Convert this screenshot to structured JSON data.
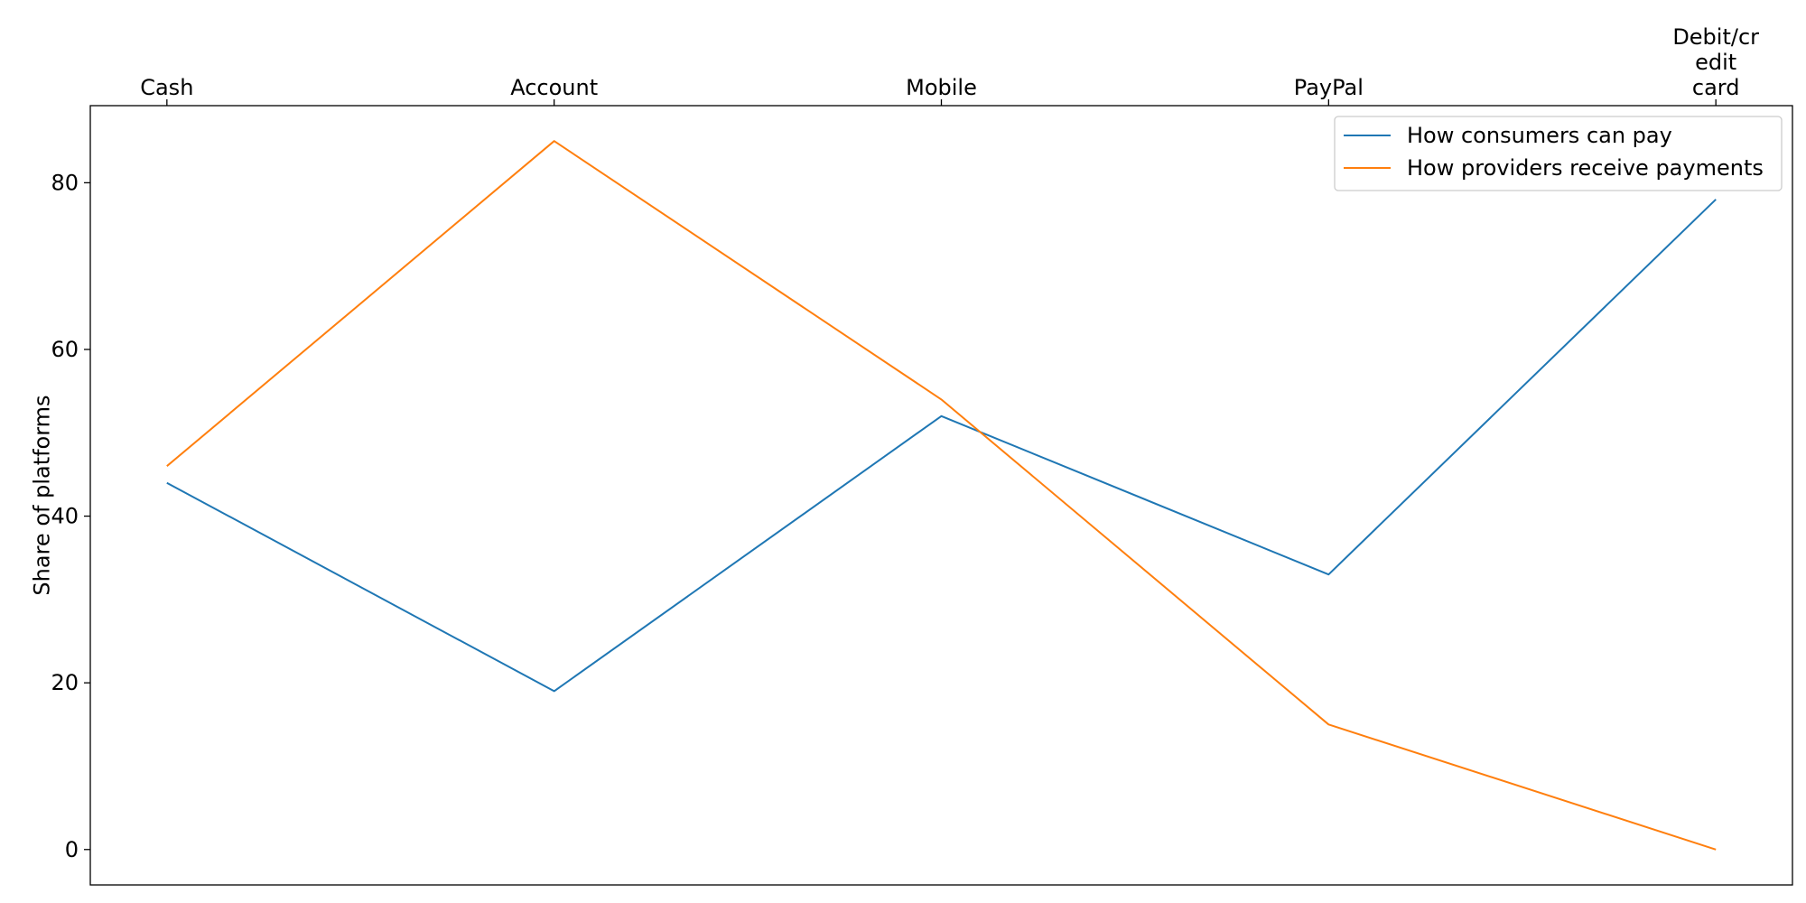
{
  "chart_data": {
    "type": "line",
    "categories": [
      "Cash",
      "Account",
      "Mobile",
      "PayPal",
      "Debit/credit card"
    ],
    "category_tick_lines": [
      [
        "Cash"
      ],
      [
        "Account"
      ],
      [
        "Mobile"
      ],
      [
        "PayPal"
      ],
      [
        "Debit/cr",
        "edit",
        "card"
      ]
    ],
    "series": [
      {
        "name": "How consumers can pay",
        "values": [
          44,
          19,
          52,
          33,
          78
        ],
        "color": "#1f77b4"
      },
      {
        "name": "How providers receive payments",
        "values": [
          46,
          85,
          54,
          15,
          0
        ],
        "color": "#ff7f0e"
      }
    ],
    "title": "",
    "xlabel": "",
    "ylabel": "Share of platforms",
    "ylim": [
      -4.25,
      89.25
    ],
    "yticks": [
      0,
      20,
      40,
      60,
      80
    ],
    "x_axis_position": "top",
    "grid": false,
    "legend_position": "top-right"
  }
}
